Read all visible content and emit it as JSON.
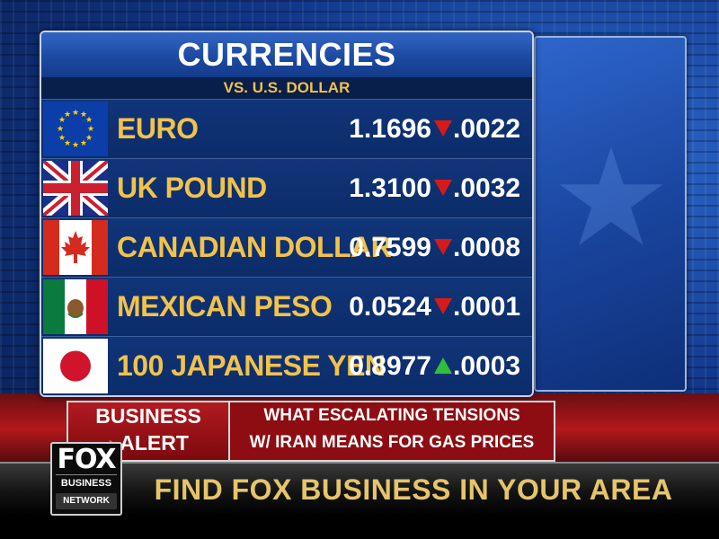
{
  "board": {
    "title": "CURRENCIES",
    "subtitle": "VS. U.S. DOLLAR",
    "rows": [
      {
        "flag": "eu-flag",
        "name": "EURO",
        "rate": "1.1696",
        "direction": "down",
        "change": ".0022"
      },
      {
        "flag": "uk-flag",
        "name": "UK POUND",
        "rate": "1.3100",
        "direction": "down",
        "change": ".0032"
      },
      {
        "flag": "canada-flag",
        "name": "CANADIAN DOLLAR",
        "rate": "0.7599",
        "direction": "down",
        "change": ".0008"
      },
      {
        "flag": "mexico-flag",
        "name": "MEXICAN PESO",
        "rate": "0.0524",
        "direction": "down",
        "change": ".0001"
      },
      {
        "flag": "japan-flag",
        "name": "100 JAPANESE YEN",
        "rate": "0.8977",
        "direction": "up",
        "change": ".0003"
      }
    ]
  },
  "alert": {
    "label_line1": "BUSINESS",
    "label_line2": "ALERT",
    "headline_line1": "WHAT ESCALATING TENSIONS",
    "headline_line2": "W/ IRAN MEANS FOR GAS PRICES"
  },
  "ticker": {
    "text": "FIND FOX BUSINESS IN YOUR AREA"
  },
  "logo": {
    "fox": "FOX",
    "business": "BUSINESS",
    "network": "NETWORK"
  },
  "colors": {
    "down_arrow": "#d61a1a",
    "up_arrow": "#2fbf3a",
    "currency_name": "#f2c24a",
    "board_background": "#0b2a63"
  }
}
